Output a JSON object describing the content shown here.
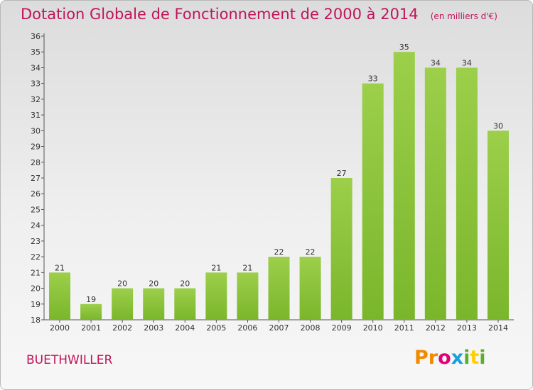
{
  "chart_data": {
    "type": "bar",
    "title": "Dotation Globale de Fonctionnement de 2000 à 2014",
    "unit_note": "(en milliers d'€)",
    "categories": [
      "2000",
      "2001",
      "2002",
      "2003",
      "2004",
      "2005",
      "2006",
      "2007",
      "2008",
      "2009",
      "2010",
      "2011",
      "2012",
      "2013",
      "2014"
    ],
    "values": [
      21,
      19,
      20,
      20,
      20,
      21,
      21,
      22,
      22,
      27,
      33,
      35,
      34,
      34,
      30
    ],
    "ylim": [
      18,
      36
    ],
    "yticks": [
      18,
      19,
      20,
      21,
      22,
      23,
      24,
      25,
      26,
      27,
      28,
      29,
      30,
      31,
      32,
      33,
      34,
      35,
      36
    ],
    "grid": false,
    "bar_color": "#7ab62c"
  },
  "commune": "BUETHWILLER",
  "brand": {
    "name": "Proxiti",
    "letters": [
      "P",
      "r",
      "o",
      "x",
      "i",
      "t",
      "i"
    ]
  }
}
